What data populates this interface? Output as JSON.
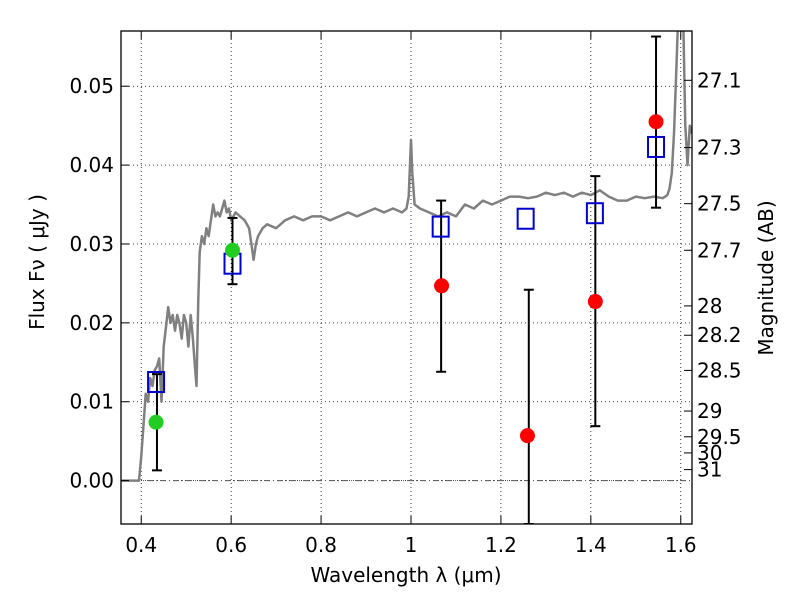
{
  "chart_data": {
    "type": "scatter",
    "xlabel": "Wavelength  λ (μm)",
    "ylabel": "Flux  Fν  ( μJy )",
    "y2label": "Magnitude (AB)",
    "xlim": [
      0.355,
      1.625
    ],
    "ylim": [
      -0.0055,
      0.057
    ],
    "grid": true,
    "x_ticks": [
      0.4,
      0.6,
      0.8,
      1.0,
      1.2,
      1.4,
      1.6
    ],
    "x_tick_labels": [
      "0.4",
      "0.6",
      "0.8",
      "1",
      "1.2",
      "1.4",
      "1.6"
    ],
    "y_ticks": [
      0.0,
      0.01,
      0.02,
      0.03,
      0.04,
      0.05
    ],
    "y_tick_labels": [
      "0.00",
      "0.01",
      "0.02",
      "0.03",
      "0.04",
      "0.05"
    ],
    "mag_ticks": [
      {
        "label": "27.1",
        "flux": 0.05075
      },
      {
        "label": "27.3",
        "flux": 0.04222
      },
      {
        "label": "27.5",
        "flux": 0.03511
      },
      {
        "label": "27.7",
        "flux": 0.0292
      },
      {
        "label": "28",
        "flux": 0.02215
      },
      {
        "label": "28.2",
        "flux": 0.01843
      },
      {
        "label": "28.5",
        "flux": 0.01397
      },
      {
        "label": "29",
        "flux": 0.00882
      },
      {
        "label": "29.5",
        "flux": 0.00556
      },
      {
        "label": "30",
        "flux": 0.00351
      },
      {
        "label": "31",
        "flux": 0.0014
      }
    ],
    "series": [
      {
        "type": "line",
        "color": "#808080",
        "points": [
          [
            0.355,
            0.0
          ],
          [
            0.39,
            0.0
          ],
          [
            0.395,
            0.0
          ],
          [
            0.4,
            0.003
          ],
          [
            0.405,
            0.007
          ],
          [
            0.41,
            0.011
          ],
          [
            0.415,
            0.01
          ],
          [
            0.42,
            0.013
          ],
          [
            0.425,
            0.012
          ],
          [
            0.43,
            0.014
          ],
          [
            0.435,
            0.0145
          ],
          [
            0.44,
            0.0155
          ],
          [
            0.445,
            0.01
          ],
          [
            0.45,
            0.017
          ],
          [
            0.455,
            0.0195
          ],
          [
            0.46,
            0.022
          ],
          [
            0.465,
            0.02
          ],
          [
            0.47,
            0.021
          ],
          [
            0.475,
            0.019
          ],
          [
            0.48,
            0.021
          ],
          [
            0.485,
            0.02
          ],
          [
            0.49,
            0.018
          ],
          [
            0.495,
            0.021
          ],
          [
            0.5,
            0.02
          ],
          [
            0.505,
            0.017
          ],
          [
            0.51,
            0.021
          ],
          [
            0.515,
            0.018
          ],
          [
            0.52,
            0.014
          ],
          [
            0.523,
            0.012
          ],
          [
            0.527,
            0.023
          ],
          [
            0.53,
            0.029
          ],
          [
            0.535,
            0.031
          ],
          [
            0.54,
            0.03
          ],
          [
            0.545,
            0.032
          ],
          [
            0.55,
            0.031
          ],
          [
            0.555,
            0.033
          ],
          [
            0.56,
            0.035
          ],
          [
            0.565,
            0.0335
          ],
          [
            0.57,
            0.034
          ],
          [
            0.575,
            0.0335
          ],
          [
            0.58,
            0.0345
          ],
          [
            0.585,
            0.0355
          ],
          [
            0.59,
            0.034
          ],
          [
            0.595,
            0.0345
          ],
          [
            0.6,
            0.033
          ],
          [
            0.61,
            0.034
          ],
          [
            0.62,
            0.0335
          ],
          [
            0.63,
            0.033
          ],
          [
            0.64,
            0.032
          ],
          [
            0.645,
            0.03
          ],
          [
            0.65,
            0.028
          ],
          [
            0.655,
            0.03
          ],
          [
            0.66,
            0.031
          ],
          [
            0.67,
            0.032
          ],
          [
            0.68,
            0.0325
          ],
          [
            0.7,
            0.032
          ],
          [
            0.72,
            0.033
          ],
          [
            0.74,
            0.0335
          ],
          [
            0.76,
            0.033
          ],
          [
            0.78,
            0.0335
          ],
          [
            0.8,
            0.0335
          ],
          [
            0.82,
            0.033
          ],
          [
            0.84,
            0.0335
          ],
          [
            0.86,
            0.034
          ],
          [
            0.88,
            0.0335
          ],
          [
            0.9,
            0.034
          ],
          [
            0.92,
            0.0345
          ],
          [
            0.94,
            0.034
          ],
          [
            0.96,
            0.0345
          ],
          [
            0.98,
            0.034
          ],
          [
            0.99,
            0.0345
          ],
          [
            0.995,
            0.036
          ],
          [
            1.0,
            0.0432
          ],
          [
            1.003,
            0.039
          ],
          [
            1.008,
            0.035
          ],
          [
            1.02,
            0.0345
          ],
          [
            1.04,
            0.034
          ],
          [
            1.06,
            0.0335
          ],
          [
            1.08,
            0.034
          ],
          [
            1.1,
            0.0335
          ],
          [
            1.12,
            0.035
          ],
          [
            1.14,
            0.0345
          ],
          [
            1.16,
            0.0355
          ],
          [
            1.18,
            0.035
          ],
          [
            1.2,
            0.0355
          ],
          [
            1.22,
            0.036
          ],
          [
            1.24,
            0.036
          ],
          [
            1.26,
            0.0358
          ],
          [
            1.28,
            0.036
          ],
          [
            1.3,
            0.0365
          ],
          [
            1.32,
            0.0362
          ],
          [
            1.34,
            0.0365
          ],
          [
            1.36,
            0.036
          ],
          [
            1.38,
            0.0365
          ],
          [
            1.4,
            0.0362
          ],
          [
            1.42,
            0.0368
          ],
          [
            1.44,
            0.036
          ],
          [
            1.46,
            0.0355
          ],
          [
            1.48,
            0.0355
          ],
          [
            1.5,
            0.036
          ],
          [
            1.52,
            0.0358
          ],
          [
            1.54,
            0.036
          ],
          [
            1.56,
            0.0358
          ],
          [
            1.57,
            0.0362
          ],
          [
            1.575,
            0.037
          ],
          [
            1.58,
            0.039
          ],
          [
            1.585,
            0.044
          ],
          [
            1.59,
            0.052
          ],
          [
            1.595,
            0.06
          ],
          [
            1.605,
            0.06
          ],
          [
            1.61,
            0.045
          ],
          [
            1.615,
            0.04
          ],
          [
            1.62,
            0.045
          ],
          [
            1.625,
            0.044
          ]
        ]
      },
      {
        "type": "errorbar",
        "color": "#000000",
        "bars": [
          {
            "x": 0.435,
            "low": 0.0013,
            "high": 0.0135
          },
          {
            "x": 0.603,
            "low": 0.0249,
            "high": 0.0333
          },
          {
            "x": 1.067,
            "low": 0.0138,
            "high": 0.0355
          },
          {
            "x": 1.262,
            "low": -0.0055,
            "high": 0.0242
          },
          {
            "x": 1.41,
            "low": 0.0069,
            "high": 0.0386
          },
          {
            "x": 1.545,
            "low": 0.0346,
            "high": 0.0563
          }
        ]
      },
      {
        "type": "scatter",
        "marker": "square",
        "color": "#0000cc",
        "points": [
          [
            0.433,
            0.0125
          ],
          [
            0.603,
            0.0275
          ],
          [
            1.066,
            0.0322
          ],
          [
            1.255,
            0.0332
          ],
          [
            1.409,
            0.0339
          ],
          [
            1.545,
            0.0423
          ]
        ]
      },
      {
        "type": "scatter",
        "marker": "circle",
        "color": "#22cc22",
        "points": [
          [
            0.433,
            0.0074
          ],
          [
            0.603,
            0.0292
          ]
        ]
      },
      {
        "type": "scatter",
        "marker": "circle",
        "color": "#ff0000",
        "points": [
          [
            1.068,
            0.0247
          ],
          [
            1.259,
            0.0057
          ],
          [
            1.41,
            0.0227
          ],
          [
            1.545,
            0.0455
          ]
        ]
      }
    ]
  }
}
